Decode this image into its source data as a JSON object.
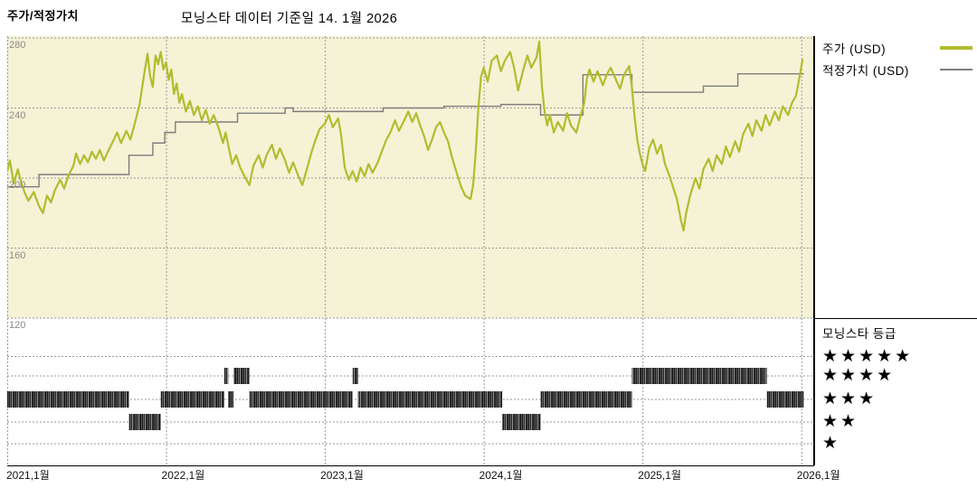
{
  "page": {
    "kicker": "주가/적정가치",
    "title": "모닝스타 데이터 기준일 14. 1월 2026"
  },
  "legend": {
    "price_label": "주가 (USD)",
    "fair_value_label": "적정가치 (USD)",
    "price_color": "#b2bc2e",
    "fair_value_color": "#7d7d7d"
  },
  "rating_legend": {
    "title": "모닝스타 등급",
    "levels": [
      5,
      4,
      3,
      2,
      1
    ],
    "star_char": "★"
  },
  "chart_data": {
    "type": "line",
    "title": "모닝스타 데이터 기준일 14. 1월 2026",
    "x_unit": "months since 2021-01",
    "x_ticks": [
      {
        "label": "2021,1월",
        "m": 0
      },
      {
        "label": "2022,1월",
        "m": 12
      },
      {
        "label": "2023,1월",
        "m": 24
      },
      {
        "label": "2024,1월",
        "m": 36
      },
      {
        "label": "2025,1월",
        "m": 48
      },
      {
        "label": "2026,1월",
        "m": 60
      }
    ],
    "y_ticks": [
      280,
      240,
      200,
      160,
      120
    ],
    "y_range": [
      120,
      280
    ],
    "x_range": [
      0,
      60.9
    ],
    "grid": "dashed",
    "plot_background": "#f5f2d6",
    "series": [
      {
        "name": "주가 (USD)",
        "color": "#b2bc2e",
        "style": "line",
        "points": [
          [
            0,
            204
          ],
          [
            0.2,
            210
          ],
          [
            0.5,
            197
          ],
          [
            0.8,
            205
          ],
          [
            1,
            199
          ],
          [
            1.3,
            192
          ],
          [
            1.6,
            187
          ],
          [
            2,
            192
          ],
          [
            2.4,
            184
          ],
          [
            2.7,
            180
          ],
          [
            3,
            190
          ],
          [
            3.3,
            186
          ],
          [
            3.6,
            193
          ],
          [
            4,
            199
          ],
          [
            4.3,
            194
          ],
          [
            4.6,
            201
          ],
          [
            5,
            207
          ],
          [
            5.2,
            214
          ],
          [
            5.5,
            208
          ],
          [
            5.8,
            213
          ],
          [
            6.1,
            209
          ],
          [
            6.4,
            215
          ],
          [
            6.7,
            211
          ],
          [
            7,
            216
          ],
          [
            7.3,
            210
          ],
          [
            7.6,
            215
          ],
          [
            8,
            221
          ],
          [
            8.3,
            226
          ],
          [
            8.6,
            220
          ],
          [
            9,
            227
          ],
          [
            9.3,
            222
          ],
          [
            9.6,
            230
          ],
          [
            10,
            242
          ],
          [
            10.2,
            252
          ],
          [
            10.4,
            262
          ],
          [
            10.6,
            271
          ],
          [
            10.8,
            258
          ],
          [
            11,
            252
          ],
          [
            11.2,
            270
          ],
          [
            11.4,
            265
          ],
          [
            11.6,
            272
          ],
          [
            11.8,
            262
          ],
          [
            12,
            266
          ],
          [
            12.2,
            256
          ],
          [
            12.4,
            262
          ],
          [
            12.6,
            248
          ],
          [
            12.8,
            254
          ],
          [
            13,
            243
          ],
          [
            13.2,
            248
          ],
          [
            13.5,
            238
          ],
          [
            13.8,
            244
          ],
          [
            14.1,
            236
          ],
          [
            14.4,
            241
          ],
          [
            14.7,
            233
          ],
          [
            15,
            239
          ],
          [
            15.3,
            231
          ],
          [
            15.6,
            236
          ],
          [
            16,
            228
          ],
          [
            16.3,
            220
          ],
          [
            16.5,
            226
          ],
          [
            16.8,
            215
          ],
          [
            17,
            208
          ],
          [
            17.3,
            213
          ],
          [
            17.6,
            206
          ],
          [
            18,
            200
          ],
          [
            18.3,
            196
          ],
          [
            18.6,
            207
          ],
          [
            19,
            213
          ],
          [
            19.3,
            206
          ],
          [
            19.6,
            213
          ],
          [
            20,
            219
          ],
          [
            20.3,
            211
          ],
          [
            20.6,
            217
          ],
          [
            21,
            210
          ],
          [
            21.3,
            203
          ],
          [
            21.6,
            209
          ],
          [
            22,
            201
          ],
          [
            22.3,
            196
          ],
          [
            22.6,
            204
          ],
          [
            23,
            215
          ],
          [
            23.3,
            222
          ],
          [
            23.6,
            228
          ],
          [
            24,
            231
          ],
          [
            24.3,
            236
          ],
          [
            24.6,
            229
          ],
          [
            25,
            234
          ],
          [
            25.2,
            226
          ],
          [
            25.5,
            206
          ],
          [
            25.8,
            199
          ],
          [
            26.1,
            204
          ],
          [
            26.4,
            198
          ],
          [
            26.7,
            206
          ],
          [
            27,
            201
          ],
          [
            27.3,
            208
          ],
          [
            27.6,
            203
          ],
          [
            28,
            209
          ],
          [
            28.3,
            215
          ],
          [
            28.6,
            221
          ],
          [
            29,
            227
          ],
          [
            29.3,
            233
          ],
          [
            29.6,
            227
          ],
          [
            30,
            233
          ],
          [
            30.3,
            238
          ],
          [
            30.6,
            232
          ],
          [
            30.9,
            237
          ],
          [
            31.2,
            230
          ],
          [
            31.5,
            224
          ],
          [
            31.8,
            216
          ],
          [
            32.1,
            222
          ],
          [
            32.4,
            229
          ],
          [
            32.7,
            232
          ],
          [
            33,
            226
          ],
          [
            33.3,
            221
          ],
          [
            33.6,
            212
          ],
          [
            34,
            202
          ],
          [
            34.3,
            195
          ],
          [
            34.6,
            190
          ],
          [
            35,
            188
          ],
          [
            35.2,
            196
          ],
          [
            35.4,
            215
          ],
          [
            35.6,
            240
          ],
          [
            35.8,
            258
          ],
          [
            36,
            263
          ],
          [
            36.3,
            255
          ],
          [
            36.6,
            267
          ],
          [
            37,
            270
          ],
          [
            37.3,
            261
          ],
          [
            37.6,
            267
          ],
          [
            38,
            272
          ],
          [
            38.3,
            263
          ],
          [
            38.6,
            250
          ],
          [
            39,
            262
          ],
          [
            39.3,
            270
          ],
          [
            39.6,
            263
          ],
          [
            40,
            269
          ],
          [
            40.2,
            278
          ],
          [
            40.4,
            252
          ],
          [
            40.6,
            238
          ],
          [
            40.8,
            230
          ],
          [
            41,
            236
          ],
          [
            41.3,
            226
          ],
          [
            41.6,
            232
          ],
          [
            42,
            227
          ],
          [
            42.3,
            237
          ],
          [
            42.6,
            230
          ],
          [
            43,
            226
          ],
          [
            43.3,
            235
          ],
          [
            43.6,
            243
          ],
          [
            43.8,
            257
          ],
          [
            44,
            262
          ],
          [
            44.3,
            255
          ],
          [
            44.6,
            261
          ],
          [
            45,
            253
          ],
          [
            45.3,
            259
          ],
          [
            45.6,
            263
          ],
          [
            46,
            256
          ],
          [
            46.3,
            251
          ],
          [
            46.6,
            259
          ],
          [
            47,
            264
          ],
          [
            47.2,
            252
          ],
          [
            47.4,
            235
          ],
          [
            47.6,
            222
          ],
          [
            47.8,
            214
          ],
          [
            48,
            208
          ],
          [
            48.2,
            204
          ],
          [
            48.5,
            217
          ],
          [
            48.8,
            222
          ],
          [
            49.1,
            214
          ],
          [
            49.4,
            219
          ],
          [
            49.7,
            208
          ],
          [
            50,
            202
          ],
          [
            50.3,
            195
          ],
          [
            50.6,
            188
          ],
          [
            50.9,
            176
          ],
          [
            51.1,
            170
          ],
          [
            51.3,
            180
          ],
          [
            51.6,
            190
          ],
          [
            52,
            200
          ],
          [
            52.3,
            194
          ],
          [
            52.6,
            205
          ],
          [
            53,
            211
          ],
          [
            53.3,
            204
          ],
          [
            53.6,
            213
          ],
          [
            54,
            208
          ],
          [
            54.3,
            218
          ],
          [
            54.6,
            212
          ],
          [
            55,
            221
          ],
          [
            55.3,
            215
          ],
          [
            55.6,
            225
          ],
          [
            56,
            231
          ],
          [
            56.3,
            224
          ],
          [
            56.6,
            233
          ],
          [
            57,
            227
          ],
          [
            57.3,
            236
          ],
          [
            57.6,
            230
          ],
          [
            58,
            238
          ],
          [
            58.3,
            233
          ],
          [
            58.6,
            241
          ],
          [
            59,
            236
          ],
          [
            59.3,
            243
          ],
          [
            59.6,
            247
          ],
          [
            59.8,
            255
          ],
          [
            60.1,
            268
          ]
        ]
      },
      {
        "name": "적정가치 (USD)",
        "color": "#7d7d7d",
        "style": "step",
        "points": [
          [
            0,
            195
          ],
          [
            2.4,
            202
          ],
          [
            9.2,
            213
          ],
          [
            11,
            220
          ],
          [
            11.9,
            226
          ],
          [
            12.7,
            232
          ],
          [
            17.4,
            237
          ],
          [
            21,
            240
          ],
          [
            21.6,
            238
          ],
          [
            28.4,
            240
          ],
          [
            33,
            241
          ],
          [
            37.3,
            242
          ],
          [
            40.3,
            236
          ],
          [
            43.5,
            259
          ],
          [
            47.2,
            249
          ],
          [
            52.6,
            252.5
          ],
          [
            55.2,
            259.5
          ],
          [
            60.2,
            259.5
          ]
        ]
      }
    ],
    "rating_timeline": {
      "name": "모닝스타 등급",
      "levels": [
        5,
        4,
        3,
        2,
        1
      ],
      "segments": [
        {
          "stars": 3,
          "from": 0,
          "to": 9.2
        },
        {
          "stars": 2,
          "from": 9.2,
          "to": 11.6
        },
        {
          "stars": 3,
          "from": 11.6,
          "to": 16.4
        },
        {
          "stars": 4,
          "from": 16.4,
          "to": 16.7
        },
        {
          "stars": 3,
          "from": 16.7,
          "to": 17.1
        },
        {
          "stars": 4,
          "from": 17.1,
          "to": 18.3
        },
        {
          "stars": 3,
          "from": 18.3,
          "to": 26.1
        },
        {
          "stars": 4,
          "from": 26.1,
          "to": 26.5
        },
        {
          "stars": 3,
          "from": 26.5,
          "to": 37.4
        },
        {
          "stars": 2,
          "from": 37.4,
          "to": 40.3
        },
        {
          "stars": 3,
          "from": 40.3,
          "to": 47.2
        },
        {
          "stars": 4,
          "from": 47.2,
          "to": 57.4
        },
        {
          "stars": 3,
          "from": 57.4,
          "to": 60.2
        }
      ]
    }
  }
}
